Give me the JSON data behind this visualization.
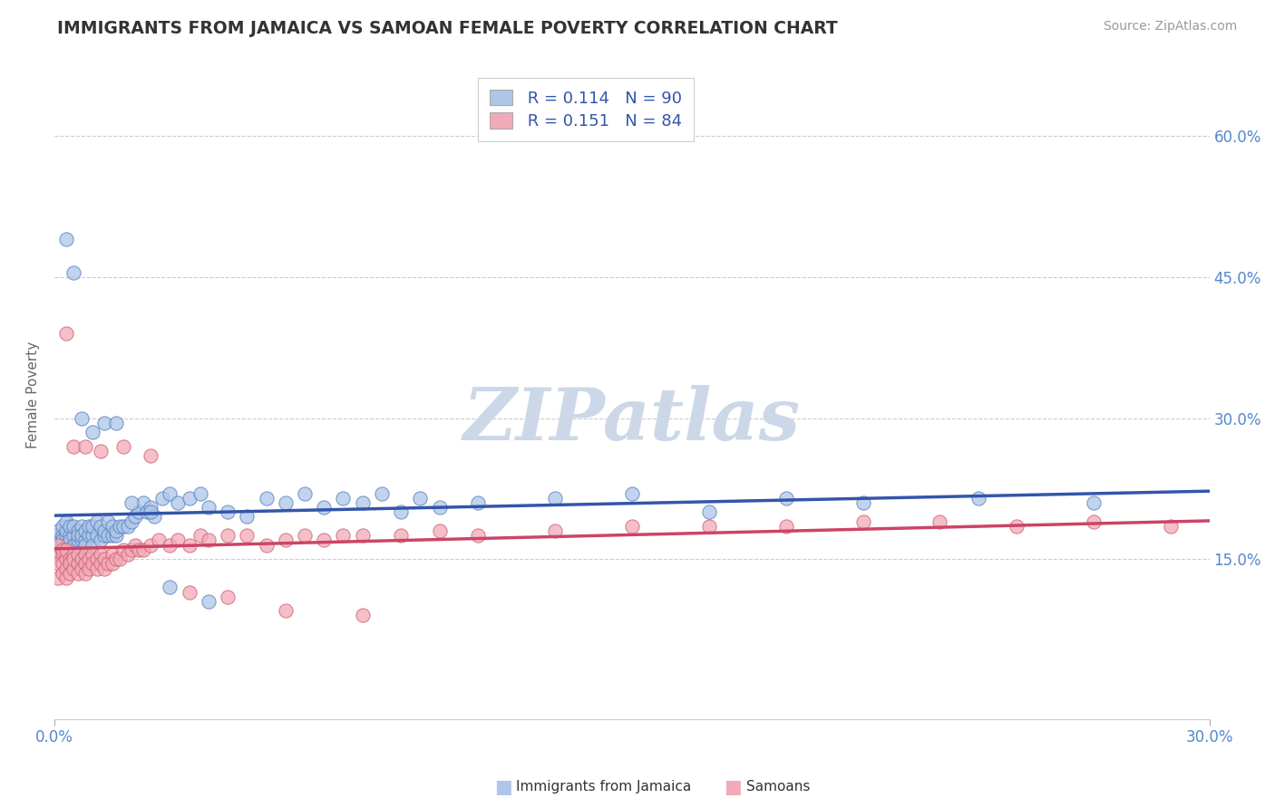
{
  "title": "IMMIGRANTS FROM JAMAICA VS SAMOAN FEMALE POVERTY CORRELATION CHART",
  "source_text": "Source: ZipAtlas.com",
  "ylabel": "Female Poverty",
  "xlim": [
    0.0,
    0.3
  ],
  "ylim": [
    -0.02,
    0.67
  ],
  "x_tick_labels": [
    "0.0%",
    "30.0%"
  ],
  "x_tick_vals": [
    0.0,
    0.3
  ],
  "y_tick_labels_right": [
    "15.0%",
    "30.0%",
    "45.0%",
    "60.0%"
  ],
  "y_tick_vals_right": [
    0.15,
    0.3,
    0.45,
    0.6
  ],
  "legend_r1": "R = 0.114",
  "legend_n1": "N = 90",
  "legend_r2": "R = 0.151",
  "legend_n2": "N = 84",
  "label1": "Immigrants from Jamaica",
  "label2": "Samoans",
  "color1": "#aec6e8",
  "color2": "#f2aab8",
  "edge_color1": "#5580c0",
  "edge_color2": "#d06070",
  "line_color1": "#3355aa",
  "line_color2": "#cc4466",
  "title_color": "#333333",
  "title_fontsize": 13.5,
  "watermark_text": "ZIPatlas",
  "watermark_color": "#ccd8e8",
  "background_color": "#ffffff",
  "grid_color": "#cccccc",
  "source_color": "#999999",
  "scatter1_x": [
    0.001,
    0.001,
    0.001,
    0.002,
    0.002,
    0.002,
    0.002,
    0.003,
    0.003,
    0.003,
    0.003,
    0.004,
    0.004,
    0.004,
    0.004,
    0.005,
    0.005,
    0.005,
    0.006,
    0.006,
    0.006,
    0.007,
    0.007,
    0.007,
    0.008,
    0.008,
    0.008,
    0.009,
    0.009,
    0.01,
    0.01,
    0.01,
    0.011,
    0.011,
    0.012,
    0.012,
    0.013,
    0.013,
    0.014,
    0.014,
    0.015,
    0.015,
    0.016,
    0.016,
    0.017,
    0.018,
    0.019,
    0.02,
    0.021,
    0.022,
    0.023,
    0.024,
    0.025,
    0.026,
    0.028,
    0.03,
    0.032,
    0.035,
    0.038,
    0.04,
    0.045,
    0.05,
    0.055,
    0.06,
    0.065,
    0.07,
    0.075,
    0.08,
    0.085,
    0.09,
    0.095,
    0.1,
    0.11,
    0.13,
    0.15,
    0.17,
    0.19,
    0.21,
    0.24,
    0.27,
    0.003,
    0.005,
    0.007,
    0.01,
    0.013,
    0.016,
    0.02,
    0.025,
    0.03,
    0.04
  ],
  "scatter1_y": [
    0.175,
    0.17,
    0.18,
    0.175,
    0.165,
    0.185,
    0.17,
    0.175,
    0.165,
    0.18,
    0.19,
    0.175,
    0.17,
    0.185,
    0.16,
    0.175,
    0.185,
    0.165,
    0.17,
    0.18,
    0.175,
    0.17,
    0.185,
    0.175,
    0.17,
    0.18,
    0.165,
    0.175,
    0.185,
    0.175,
    0.165,
    0.185,
    0.175,
    0.19,
    0.17,
    0.185,
    0.175,
    0.18,
    0.19,
    0.175,
    0.175,
    0.185,
    0.175,
    0.18,
    0.185,
    0.185,
    0.185,
    0.19,
    0.195,
    0.2,
    0.21,
    0.2,
    0.205,
    0.195,
    0.215,
    0.22,
    0.21,
    0.215,
    0.22,
    0.205,
    0.2,
    0.195,
    0.215,
    0.21,
    0.22,
    0.205,
    0.215,
    0.21,
    0.22,
    0.2,
    0.215,
    0.205,
    0.21,
    0.215,
    0.22,
    0.2,
    0.215,
    0.21,
    0.215,
    0.21,
    0.49,
    0.455,
    0.3,
    0.285,
    0.295,
    0.295,
    0.21,
    0.2,
    0.12,
    0.105
  ],
  "scatter2_x": [
    0.001,
    0.001,
    0.001,
    0.001,
    0.002,
    0.002,
    0.002,
    0.002,
    0.003,
    0.003,
    0.003,
    0.003,
    0.004,
    0.004,
    0.004,
    0.005,
    0.005,
    0.005,
    0.006,
    0.006,
    0.006,
    0.007,
    0.007,
    0.008,
    0.008,
    0.008,
    0.009,
    0.009,
    0.01,
    0.01,
    0.011,
    0.011,
    0.012,
    0.012,
    0.013,
    0.013,
    0.014,
    0.015,
    0.015,
    0.016,
    0.017,
    0.018,
    0.019,
    0.02,
    0.021,
    0.022,
    0.023,
    0.025,
    0.027,
    0.03,
    0.032,
    0.035,
    0.038,
    0.04,
    0.045,
    0.05,
    0.055,
    0.06,
    0.065,
    0.07,
    0.075,
    0.08,
    0.09,
    0.1,
    0.11,
    0.13,
    0.15,
    0.17,
    0.19,
    0.21,
    0.23,
    0.25,
    0.27,
    0.29,
    0.003,
    0.005,
    0.008,
    0.012,
    0.018,
    0.025,
    0.035,
    0.045,
    0.06,
    0.08
  ],
  "scatter2_y": [
    0.155,
    0.145,
    0.165,
    0.13,
    0.155,
    0.145,
    0.135,
    0.16,
    0.15,
    0.14,
    0.16,
    0.13,
    0.15,
    0.145,
    0.135,
    0.155,
    0.14,
    0.15,
    0.145,
    0.135,
    0.155,
    0.15,
    0.14,
    0.155,
    0.145,
    0.135,
    0.15,
    0.14,
    0.155,
    0.145,
    0.15,
    0.14,
    0.155,
    0.145,
    0.15,
    0.14,
    0.145,
    0.155,
    0.145,
    0.15,
    0.15,
    0.16,
    0.155,
    0.16,
    0.165,
    0.16,
    0.16,
    0.165,
    0.17,
    0.165,
    0.17,
    0.165,
    0.175,
    0.17,
    0.175,
    0.175,
    0.165,
    0.17,
    0.175,
    0.17,
    0.175,
    0.175,
    0.175,
    0.18,
    0.175,
    0.18,
    0.185,
    0.185,
    0.185,
    0.19,
    0.19,
    0.185,
    0.19,
    0.185,
    0.39,
    0.27,
    0.27,
    0.265,
    0.27,
    0.26,
    0.115,
    0.11,
    0.095,
    0.09
  ]
}
